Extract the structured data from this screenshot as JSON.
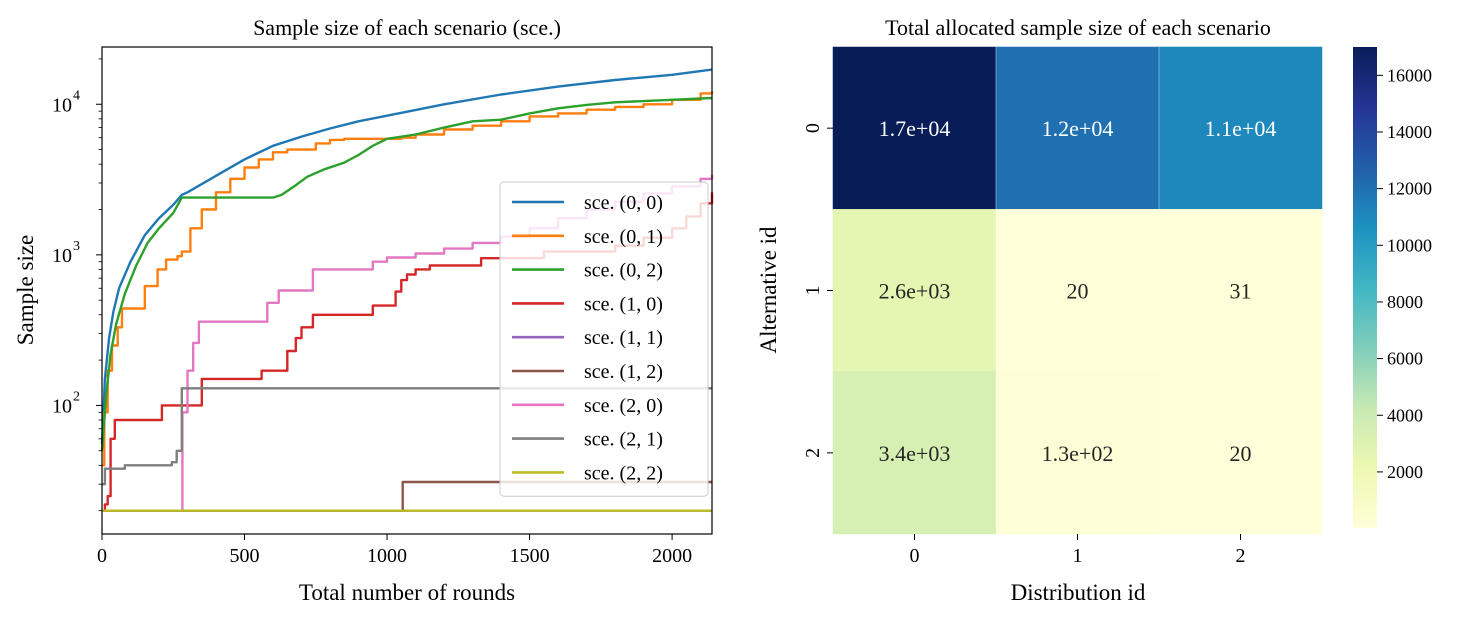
{
  "chart_data": [
    {
      "type": "line",
      "title": "Sample size of each scenario (sce.)",
      "xlabel": "Total number of rounds",
      "ylabel": "Sample size",
      "xlim": [
        0,
        2140
      ],
      "ylim": [
        14,
        24000
      ],
      "yscale": "log",
      "xticks": [
        0,
        500,
        1000,
        1500,
        2000
      ],
      "xtick_labels": [
        "0",
        "500",
        "1000",
        "1500",
        "2000"
      ],
      "yticks": [
        100,
        1000,
        10000
      ],
      "ytick_labels": [
        {
          "base": "10",
          "exp": "2"
        },
        {
          "base": "10",
          "exp": "3"
        },
        {
          "base": "10",
          "exp": "4"
        }
      ],
      "legend_position": "lower-right",
      "grid": false,
      "series": [
        {
          "name": "sce. (0, 0)",
          "color": "#1f77b4",
          "style": "smooth",
          "points": [
            [
              0,
              55
            ],
            [
              10,
              150
            ],
            [
              25,
              280
            ],
            [
              40,
              420
            ],
            [
              60,
              600
            ],
            [
              100,
              900
            ],
            [
              150,
              1350
            ],
            [
              200,
              1750
            ],
            [
              250,
              2150
            ],
            [
              280,
              2500
            ],
            [
              300,
              2600
            ],
            [
              400,
              3350
            ],
            [
              500,
              4300
            ],
            [
              600,
              5300
            ],
            [
              700,
              6100
            ],
            [
              800,
              6900
            ],
            [
              900,
              7700
            ],
            [
              1000,
              8400
            ],
            [
              1200,
              10000
            ],
            [
              1400,
              11600
            ],
            [
              1600,
              13100
            ],
            [
              1800,
              14500
            ],
            [
              2000,
              15700
            ],
            [
              2140,
              17000
            ]
          ]
        },
        {
          "name": "sce. (0, 1)",
          "color": "#ff7f0e",
          "style": "step",
          "points": [
            [
              0,
              40
            ],
            [
              8,
              90
            ],
            [
              20,
              170
            ],
            [
              35,
              250
            ],
            [
              55,
              330
            ],
            [
              70,
              440
            ],
            [
              135,
              440
            ],
            [
              150,
              620
            ],
            [
              185,
              620
            ],
            [
              195,
              800
            ],
            [
              215,
              800
            ],
            [
              225,
              930
            ],
            [
              265,
              980
            ],
            [
              280,
              1050
            ],
            [
              310,
              1500
            ],
            [
              350,
              2000
            ],
            [
              400,
              2600
            ],
            [
              450,
              3200
            ],
            [
              500,
              3800
            ],
            [
              550,
              4300
            ],
            [
              600,
              4800
            ],
            [
              650,
              5000
            ],
            [
              700,
              5000
            ],
            [
              750,
              5500
            ],
            [
              800,
              5800
            ],
            [
              850,
              5900
            ],
            [
              1050,
              6000
            ],
            [
              1100,
              6300
            ],
            [
              1200,
              6800
            ],
            [
              1300,
              7200
            ],
            [
              1400,
              7700
            ],
            [
              1500,
              8300
            ],
            [
              1600,
              8700
            ],
            [
              1700,
              9200
            ],
            [
              1800,
              9600
            ],
            [
              1900,
              10000
            ],
            [
              2000,
              10700
            ],
            [
              2100,
              11800
            ],
            [
              2140,
              12200
            ]
          ]
        },
        {
          "name": "sce. (0, 2)",
          "color": "#2ca02c",
          "style": "smooth",
          "points": [
            [
              0,
              50
            ],
            [
              15,
              120
            ],
            [
              30,
              220
            ],
            [
              50,
              350
            ],
            [
              80,
              550
            ],
            [
              120,
              850
            ],
            [
              160,
              1200
            ],
            [
              200,
              1500
            ],
            [
              250,
              1900
            ],
            [
              280,
              2400
            ],
            [
              400,
              2400
            ],
            [
              600,
              2400
            ],
            [
              630,
              2500
            ],
            [
              680,
              2900
            ],
            [
              720,
              3300
            ],
            [
              780,
              3700
            ],
            [
              850,
              4100
            ],
            [
              900,
              4600
            ],
            [
              950,
              5300
            ],
            [
              1000,
              5900
            ],
            [
              1100,
              6300
            ],
            [
              1200,
              7000
            ],
            [
              1300,
              7700
            ],
            [
              1400,
              7900
            ],
            [
              1500,
              8700
            ],
            [
              1600,
              9400
            ],
            [
              1700,
              9900
            ],
            [
              1800,
              10300
            ],
            [
              2000,
              10700
            ],
            [
              2140,
              11000
            ]
          ]
        },
        {
          "name": "sce. (1, 0)",
          "color": "#d62728",
          "style": "step",
          "points": [
            [
              0,
              20
            ],
            [
              10,
              22
            ],
            [
              20,
              25
            ],
            [
              30,
              60
            ],
            [
              45,
              80
            ],
            [
              200,
              80
            ],
            [
              210,
              100
            ],
            [
              340,
              100
            ],
            [
              350,
              150
            ],
            [
              540,
              150
            ],
            [
              560,
              170
            ],
            [
              630,
              170
            ],
            [
              650,
              230
            ],
            [
              680,
              280
            ],
            [
              700,
              330
            ],
            [
              740,
              400
            ],
            [
              900,
              400
            ],
            [
              950,
              460
            ],
            [
              1000,
              460
            ],
            [
              1030,
              570
            ],
            [
              1050,
              680
            ],
            [
              1070,
              740
            ],
            [
              1100,
              800
            ],
            [
              1150,
              850
            ],
            [
              1300,
              850
            ],
            [
              1330,
              950
            ],
            [
              1500,
              950
            ],
            [
              1550,
              1050
            ],
            [
              1700,
              1050
            ],
            [
              1800,
              1150
            ],
            [
              1900,
              1300
            ],
            [
              2000,
              1500
            ],
            [
              2050,
              1800
            ],
            [
              2100,
              2200
            ],
            [
              2140,
              2600
            ]
          ]
        },
        {
          "name": "sce. (1, 1)",
          "color": "#9467bd",
          "style": "step",
          "points": [
            [
              0,
              20
            ],
            [
              2140,
              20
            ]
          ]
        },
        {
          "name": "sce. (1, 2)",
          "color": "#8c564b",
          "style": "step",
          "points": [
            [
              0,
              20
            ],
            [
              1055,
              20
            ],
            [
              1055,
              31
            ],
            [
              2140,
              31
            ]
          ]
        },
        {
          "name": "sce. (2, 0)",
          "color": "#e377c2",
          "style": "step",
          "points": [
            [
              282,
              20
            ],
            [
              282,
              90
            ],
            [
              300,
              170
            ],
            [
              320,
              260
            ],
            [
              340,
              360
            ],
            [
              560,
              360
            ],
            [
              580,
              480
            ],
            [
              620,
              580
            ],
            [
              700,
              580
            ],
            [
              740,
              800
            ],
            [
              900,
              800
            ],
            [
              950,
              900
            ],
            [
              1000,
              960
            ],
            [
              1100,
              1020
            ],
            [
              1200,
              1100
            ],
            [
              1300,
              1200
            ],
            [
              1400,
              1320
            ],
            [
              1500,
              1500
            ],
            [
              1600,
              1750
            ],
            [
              1700,
              2000
            ],
            [
              1800,
              2250
            ],
            [
              1900,
              2550
            ],
            [
              2000,
              2850
            ],
            [
              2100,
              3200
            ],
            [
              2140,
              3400
            ]
          ]
        },
        {
          "name": "sce. (2, 1)",
          "color": "#7f7f7f",
          "style": "step",
          "points": [
            [
              0,
              30
            ],
            [
              10,
              38
            ],
            [
              75,
              38
            ],
            [
              80,
              40
            ],
            [
              235,
              40
            ],
            [
              245,
              42
            ],
            [
              262,
              50
            ],
            [
              278,
              50
            ],
            [
              280,
              130
            ],
            [
              2140,
              130
            ]
          ]
        },
        {
          "name": "sce. (2, 2)",
          "color": "#bcbd22",
          "style": "step",
          "points": [
            [
              0,
              20
            ],
            [
              2140,
              20
            ]
          ]
        }
      ]
    },
    {
      "type": "heatmap",
      "title": "Total allocated sample size of each scenario",
      "xlabel": "Distribution id",
      "ylabel": "Alternative id",
      "x_categories": [
        "0",
        "1",
        "2"
      ],
      "y_categories": [
        "0",
        "1",
        "2"
      ],
      "values": [
        [
          17000,
          12000,
          11000
        ],
        [
          2600,
          20,
          31
        ],
        [
          3400,
          130,
          20
        ]
      ],
      "annotations": [
        [
          "1.7e+04",
          "1.2e+04",
          "1.1e+04"
        ],
        [
          "2.6e+03",
          "20",
          "31"
        ],
        [
          "3.4e+03",
          "1.3e+02",
          "20"
        ]
      ],
      "colormap": "YlGnBu",
      "colorbar": {
        "range": [
          20,
          17000
        ],
        "ticks": [
          2000,
          4000,
          6000,
          8000,
          10000,
          12000,
          14000,
          16000
        ],
        "tick_labels": [
          "2000",
          "4000",
          "6000",
          "8000",
          "10000",
          "12000",
          "14000",
          "16000"
        ]
      }
    }
  ]
}
